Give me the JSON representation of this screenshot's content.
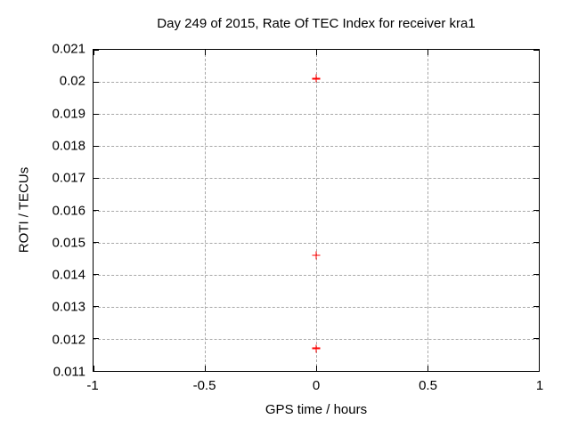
{
  "chart_data": {
    "type": "scatter",
    "title": "Day 249 of 2015, Rate Of TEC Index for receiver kra1",
    "xlabel": "GPS time / hours",
    "ylabel": "ROTI / TECUs",
    "xlim": [
      -1,
      1
    ],
    "ylim": [
      0.011,
      0.021
    ],
    "xticks": {
      "values": [
        -1,
        -0.5,
        0,
        0.5,
        1
      ],
      "labels": [
        "-1",
        "-0.5",
        "0",
        "0.5",
        "1"
      ]
    },
    "yticks": {
      "values": [
        0.011,
        0.012,
        0.013,
        0.014,
        0.015,
        0.016,
        0.017,
        0.018,
        0.019,
        0.02,
        0.021
      ],
      "labels": [
        "0.011",
        "0.012",
        "0.013",
        "0.014",
        "0.015",
        "0.016",
        "0.017",
        "0.018",
        "0.019",
        "0.02",
        "0.021"
      ]
    },
    "grid": true,
    "legend": "none",
    "series": [
      {
        "name": "ROTI",
        "marker": "plus",
        "color": "#ff0000",
        "points": [
          {
            "x": 0,
            "y": 0.0201
          },
          {
            "x": 0,
            "y": 0.0146
          },
          {
            "x": 0,
            "y": 0.0117
          }
        ]
      }
    ],
    "colors": {
      "background": "#ffffff",
      "axis": "#000000",
      "grid": "#a8a8a8",
      "marker": "#ff0000",
      "text": "#000000"
    }
  }
}
